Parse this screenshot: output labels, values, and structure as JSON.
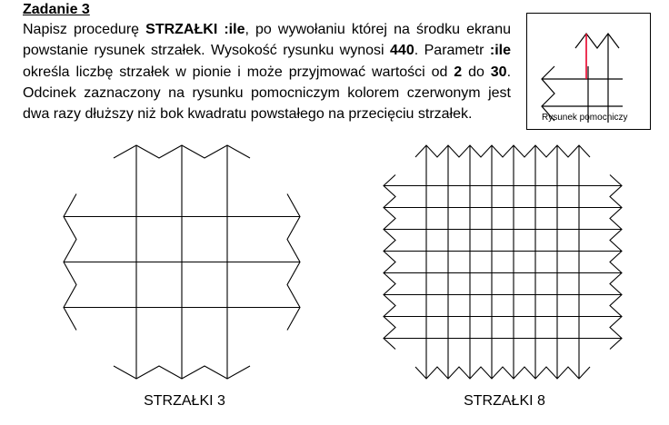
{
  "task": {
    "title": "Zadanie 3",
    "p1": "Napisz procedurę ",
    "proc_name": "STRZAŁKI :ile",
    "p2": ", po wywołaniu której na środku ekranu powstanie rysunek strzałek. Wysokość rysunku wynosi ",
    "height": "440",
    "p3": ". Parametr ",
    "param": ":ile",
    "p4": " określa liczbę strzałek w pionie i może przyjmować wartości od ",
    "min": "2",
    "p5": " do ",
    "max": "30",
    "p6": ". Odcinek zaznaczony na rysunku pomocniczym kolorem czerwonym jest dwa razy dłuższy niż bok kwadratu powstałego na przecięciu strzałek."
  },
  "helper": {
    "caption": "Rysunek pomocniczy",
    "highlight_color": "#e8002a"
  },
  "figures": [
    {
      "caption": "STRZAŁKI 3",
      "count": 3
    },
    {
      "caption": "STRZAŁKI 8",
      "count": 8
    }
  ]
}
